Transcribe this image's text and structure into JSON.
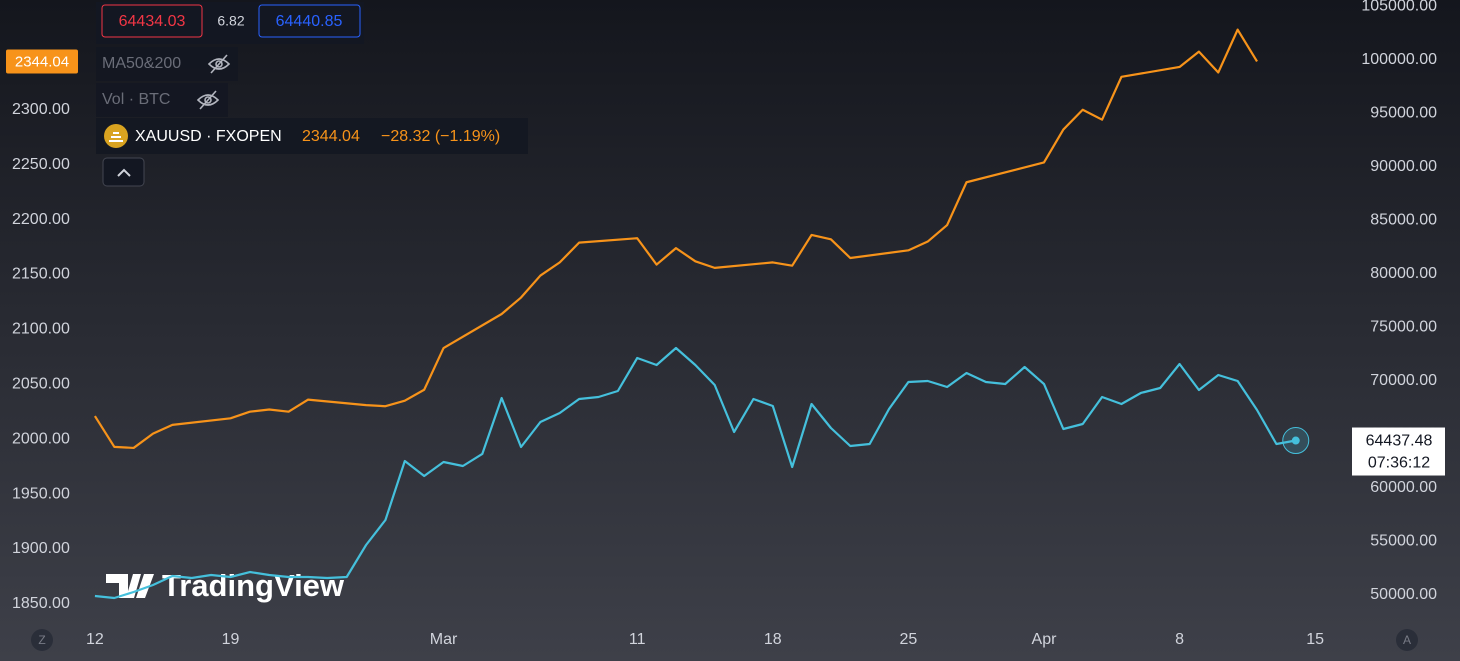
{
  "header": {
    "bid": "64434.03",
    "spread": "6.82",
    "ask": "64440.85",
    "indicators": [
      "MA50&200",
      "Vol · BTC"
    ],
    "change": "−28.32 (−1.19%)"
  },
  "chart_data": {
    "type": "line",
    "xlim": [
      -4.9,
      64.8
    ],
    "xticks": [
      {
        "value": 0,
        "label": "12"
      },
      {
        "value": 7,
        "label": "19"
      },
      {
        "value": 18,
        "label": "Mar"
      },
      {
        "value": 28,
        "label": "11"
      },
      {
        "value": 35,
        "label": "18"
      },
      {
        "value": 42,
        "label": "25"
      },
      {
        "value": 49,
        "label": "Apr"
      },
      {
        "value": 56,
        "label": "8"
      },
      {
        "value": 63,
        "label": "15"
      }
    ],
    "ylim": [
      1828,
      2400
    ],
    "yticks": [
      {
        "value": 1850,
        "label": "1850.00"
      },
      {
        "value": 1900,
        "label": "1900.00"
      },
      {
        "value": 1950,
        "label": "1950.00"
      },
      {
        "value": 2000,
        "label": "2000.00"
      },
      {
        "value": 2050,
        "label": "2050.00"
      },
      {
        "value": 2100,
        "label": "2100.00"
      },
      {
        "value": 2150,
        "label": "2150.00"
      },
      {
        "value": 2200,
        "label": "2200.00"
      },
      {
        "value": 2250,
        "label": "2250.00"
      },
      {
        "value": 2300,
        "label": "2300.00"
      }
    ],
    "y2lim": [
      46916,
      105607
    ],
    "y2ticks": [
      {
        "value": 50000,
        "label": "50000.00"
      },
      {
        "value": 55000,
        "label": "55000.00"
      },
      {
        "value": 60000,
        "label": "60000.00"
      },
      {
        "value": 65000,
        "label": "65000.00"
      },
      {
        "value": 70000,
        "label": "70000.00"
      },
      {
        "value": 75000,
        "label": "75000.00"
      },
      {
        "value": 80000,
        "label": "80000.00"
      },
      {
        "value": 85000,
        "label": "85000.00"
      },
      {
        "value": 90000,
        "label": "90000.00"
      },
      {
        "value": 95000,
        "label": "95000.00"
      },
      {
        "value": 100000,
        "label": "100000.00"
      },
      {
        "value": 105000,
        "label": "105000.00"
      }
    ],
    "grid": false,
    "series": [
      {
        "name": "XAUUSD · FXOPEN",
        "color": "#f7931a",
        "x": [
          0,
          1,
          2,
          3,
          4,
          7,
          8,
          9,
          10,
          11,
          14,
          15,
          16,
          17,
          18,
          21,
          22,
          23,
          24,
          25,
          28,
          29,
          30,
          31,
          32,
          35,
          36,
          37,
          38,
          39,
          42,
          43,
          44,
          45,
          49,
          50,
          51,
          52,
          53,
          56,
          57,
          58,
          59,
          60
        ],
        "values": [
          2021,
          1993,
          1992,
          2005,
          2013,
          2019,
          2025,
          2027,
          2025,
          2036,
          2031,
          2030,
          2035,
          2045,
          2083,
          2114,
          2129,
          2149,
          2161,
          2179,
          2183,
          2159,
          2174,
          2162,
          2156,
          2161,
          2158,
          2186,
          2182,
          2165,
          2172,
          2180,
          2195,
          2234,
          2252,
          2282,
          2300,
          2291,
          2330,
          2339,
          2353,
          2334,
          2373,
          2344.04
        ]
      },
      {
        "color": "#45c0dc",
        "axis": "y2",
        "x": [
          0,
          1,
          2,
          3,
          4,
          5,
          6,
          7,
          8,
          9,
          10,
          11,
          12,
          13,
          14,
          15,
          16,
          17,
          18,
          19,
          20,
          21,
          22,
          23,
          24,
          25,
          26,
          27,
          28,
          29,
          30,
          31,
          32,
          33,
          34,
          35,
          36,
          37,
          38,
          39,
          40,
          41,
          42,
          43,
          44,
          45,
          46,
          47,
          48,
          49,
          50,
          51,
          52,
          53,
          54,
          55,
          56,
          57,
          58,
          59,
          60,
          61,
          62
        ],
        "values": [
          49905,
          49719,
          50280,
          50934,
          51775,
          51588,
          51869,
          51682,
          52149,
          51869,
          51682,
          51682,
          51588,
          51682,
          54673,
          57009,
          62523,
          61121,
          62430,
          62056,
          63178,
          68411,
          63832,
          66168,
          67009,
          68318,
          68505,
          69065,
          72150,
          71495,
          73084,
          71495,
          69626,
          65233,
          68318,
          67664,
          61963,
          67850,
          65607,
          63925,
          64112,
          67383,
          69907,
          70000,
          69439,
          70748,
          69907,
          69720,
          71308,
          69720,
          65514,
          65981,
          68505,
          67850,
          68879,
          69346,
          71589,
          69159,
          70561,
          70000,
          67290,
          64112,
          64437.48
        ]
      }
    ],
    "last_time": "07:36:12",
    "watermark": "TradingView"
  },
  "ui": {
    "scale_buttons": [
      "Z",
      "A"
    ]
  }
}
